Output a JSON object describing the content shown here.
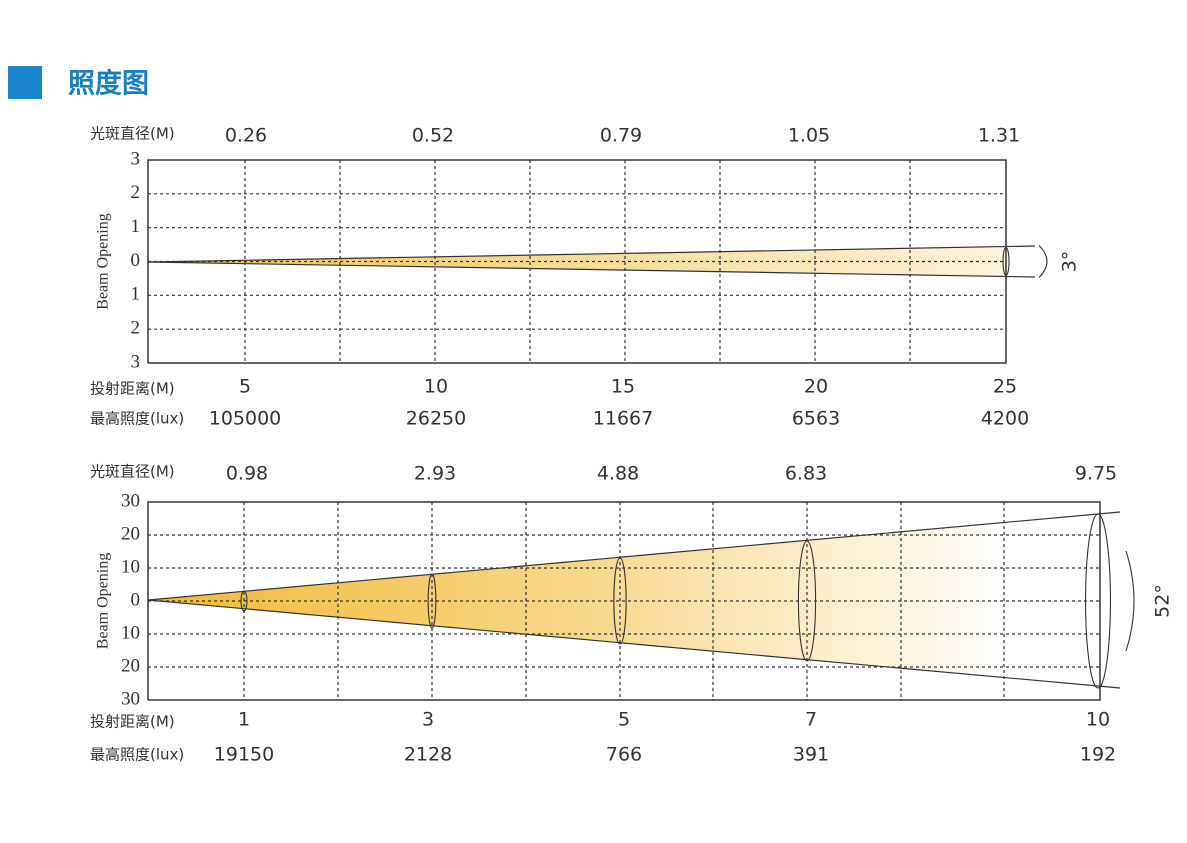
{
  "header": {
    "title": "照度图"
  },
  "panels": [
    {
      "diameter_label": "光斑直径(M)",
      "diameters": [
        "0.26",
        "0.52",
        "0.79",
        "1.05",
        "1.31"
      ],
      "y_axis_label": "Beam Opening",
      "y_ticks": [
        "3",
        "2",
        "1",
        "0",
        "1",
        "2",
        "3"
      ],
      "distance_label": "投射距离(M)",
      "distances": [
        "5",
        "10",
        "15",
        "20",
        "25"
      ],
      "illuminance_label": "最高照度(lux)",
      "illuminance": [
        "105000",
        "26250",
        "11667",
        "6563",
        "4200"
      ],
      "beam_angle": "3°"
    },
    {
      "diameter_label": "光斑直径(M)",
      "diameters": [
        "0.98",
        "2.93",
        "4.88",
        "6.83",
        "9.75"
      ],
      "y_axis_label": "Beam Opening",
      "y_ticks": [
        "30",
        "20",
        "10",
        "0",
        "10",
        "20",
        "30"
      ],
      "distance_label": "投射距离(M)",
      "distances": [
        "1",
        "3",
        "5",
        "7",
        "10"
      ],
      "illuminance_label": "最高照度(lux)",
      "illuminance": [
        "19150",
        "2128",
        "766",
        "391",
        "192"
      ],
      "beam_angle": "52°"
    }
  ]
}
